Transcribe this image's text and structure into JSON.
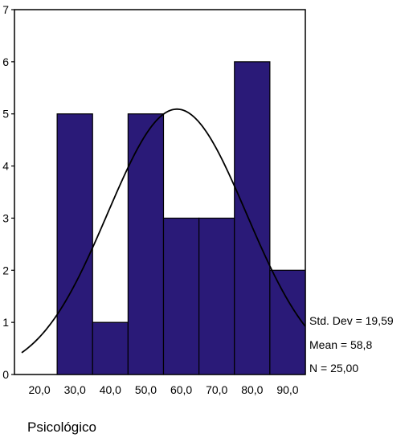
{
  "chart_data": {
    "type": "bar",
    "x": [
      30,
      40,
      50,
      60,
      70,
      80,
      90
    ],
    "categories": [
      "20,0",
      "30,0",
      "40,0",
      "50,0",
      "60,0",
      "70,0",
      "80,0",
      "90,0"
    ],
    "values": [
      5,
      1,
      5,
      3,
      3,
      6,
      2
    ],
    "bin_width": 10,
    "xlim": [
      15,
      95
    ],
    "ylim": [
      0,
      7
    ],
    "yticks": [
      "0",
      "1",
      "2",
      "3",
      "4",
      "5",
      "6",
      "7"
    ],
    "xlabel": "Psicológico",
    "ylabel": "",
    "title": "",
    "normal_curve": {
      "mean": 58.8,
      "std": 19.59,
      "n": 25
    },
    "stats": {
      "std_dev": "Std. Dev = 19,59",
      "mean": "Mean = 58,8",
      "n": "N = 25,00"
    },
    "bar_color": "#2a1a78",
    "grid": false
  }
}
